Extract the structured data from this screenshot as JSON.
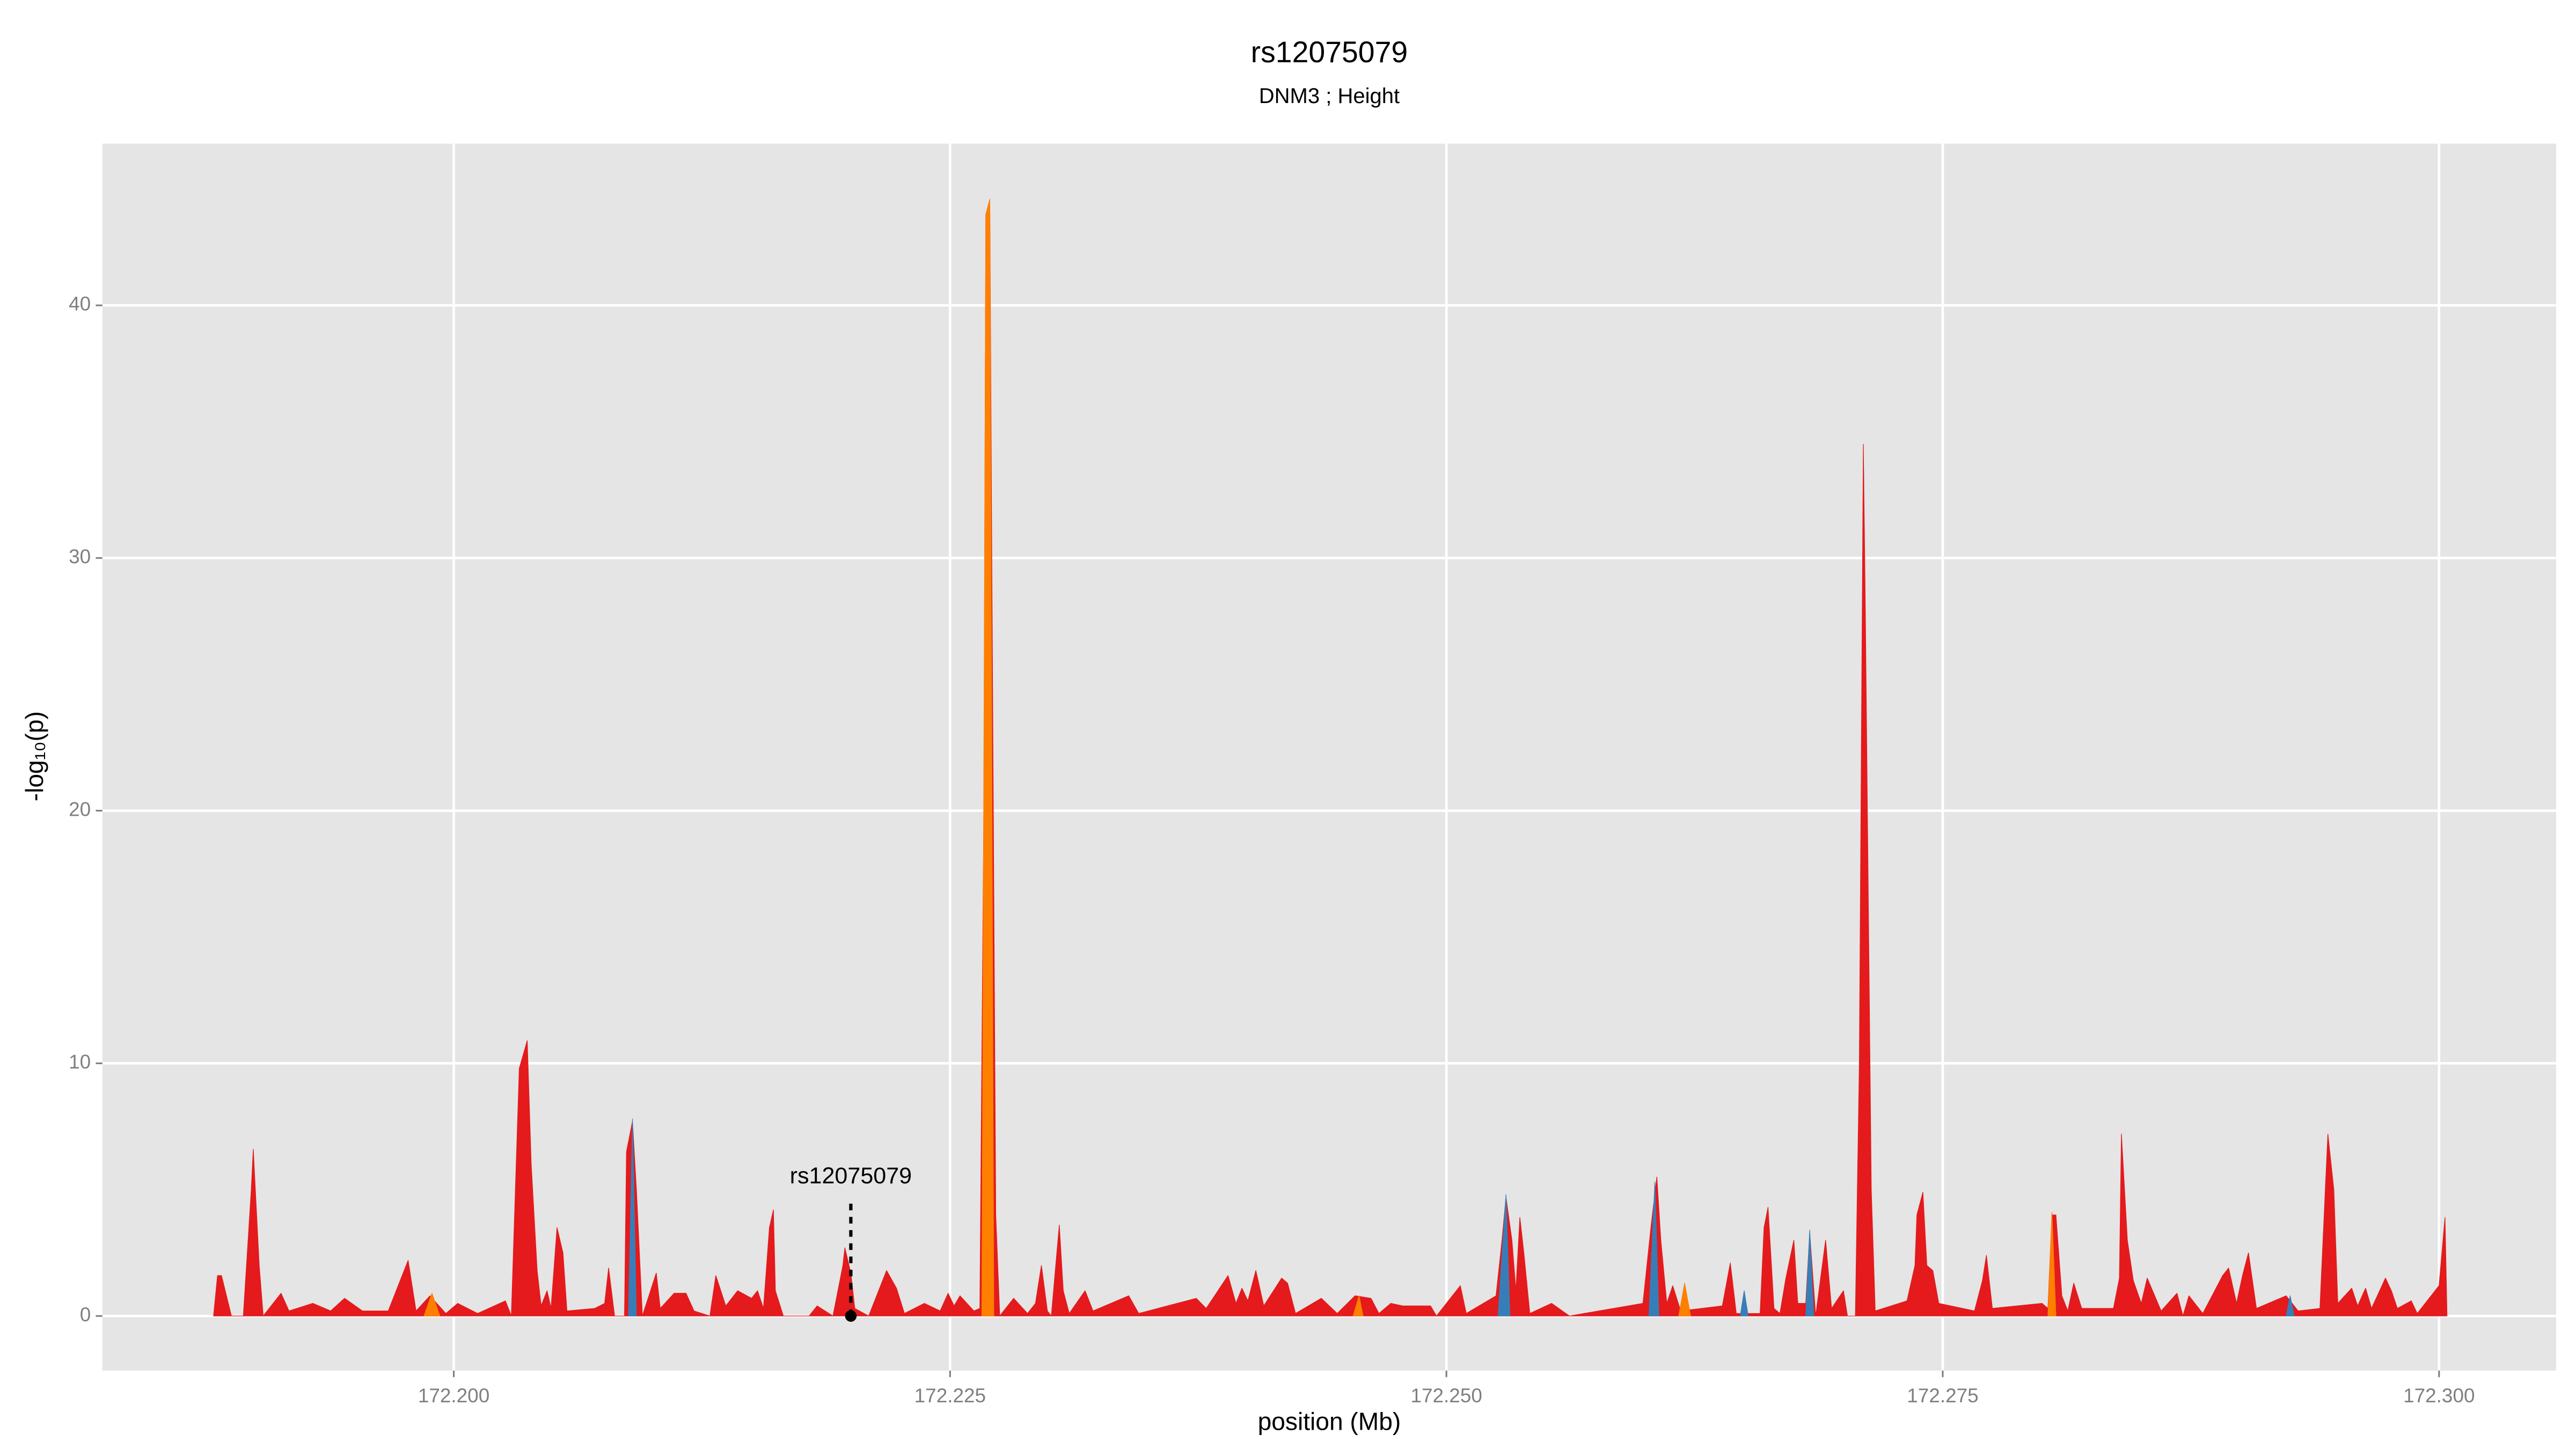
{
  "chart_data": {
    "type": "area",
    "title": "rs12075079",
    "subtitle": "DNM3 ; Height",
    "xlabel": "position (Mb)",
    "ylabel": "-log₁₀(p)",
    "xlim": [
      172.1823,
      172.3059
    ],
    "ylim": [
      -2.16,
      46.4
    ],
    "xticks": [
      {
        "value": 172.2,
        "label": "172.200"
      },
      {
        "value": 172.225,
        "label": "172.225"
      },
      {
        "value": 172.25,
        "label": "172.250"
      },
      {
        "value": 172.275,
        "label": "172.275"
      },
      {
        "value": 172.3,
        "label": "172.300"
      }
    ],
    "yticks": [
      0,
      10,
      20,
      30,
      40
    ],
    "grid": true,
    "series": [
      {
        "color": "#e41a1c",
        "x": [
          172.1879,
          172.1881,
          172.1883,
          172.1888,
          172.1894,
          172.1898,
          172.1899,
          172.1902,
          172.1904,
          172.1913,
          172.1917,
          172.1929,
          172.1938,
          172.1945,
          172.1954,
          172.1967,
          172.1977,
          172.1981,
          172.1988,
          172.1996,
          172.2002,
          172.2012,
          172.2026,
          172.2029,
          172.2033,
          172.2037,
          172.2039,
          172.2042,
          172.2044,
          172.2047,
          172.2049,
          172.2052,
          172.2055,
          172.2057,
          172.2071,
          172.2076,
          172.2078,
          172.2081,
          172.2086,
          172.2087,
          172.209,
          172.2092,
          172.2095,
          172.2102,
          172.2104,
          172.2111,
          172.2117,
          172.2121,
          172.2129,
          172.2132,
          172.2137,
          172.2143,
          172.215,
          172.2153,
          172.2156,
          172.2159,
          172.2161,
          172.2162,
          172.2166,
          172.2179,
          172.2183,
          172.2191,
          172.2196,
          172.2197,
          172.22,
          172.2202,
          172.2209,
          172.2218,
          172.2223,
          172.2227,
          172.2237,
          172.2245,
          172.2249,
          172.2252,
          172.2255,
          172.2262,
          172.2265,
          172.2267,
          172.2268,
          172.227,
          172.2271,
          172.2273,
          172.2275,
          172.2282,
          172.2289,
          172.2293,
          172.2296,
          172.2299,
          172.2301,
          172.2305,
          172.2307,
          172.231,
          172.2318,
          172.2322,
          172.234,
          172.2345,
          172.2374,
          172.2379,
          172.239,
          172.2394,
          172.2397,
          172.24,
          172.2404,
          172.2408,
          172.2417,
          172.242,
          172.2424,
          172.2437,
          172.2445,
          172.2454,
          172.2462,
          172.2466,
          172.2472,
          172.2478,
          172.2492,
          172.2495,
          172.2507,
          172.251,
          172.2525,
          172.2528,
          172.253,
          172.2533,
          172.2535,
          172.2537,
          172.2539,
          172.2542,
          172.2553,
          172.2562,
          172.2599,
          172.2603,
          172.2606,
          172.2608,
          172.2611,
          172.2614,
          172.2618,
          172.2639,
          172.2643,
          172.2646,
          172.2658,
          172.266,
          172.2662,
          172.2665,
          172.2668,
          172.2671,
          172.2675,
          172.2677,
          172.2681,
          172.2683,
          172.2686,
          172.2691,
          172.2694,
          172.27,
          172.2702,
          172.2706,
          172.2708,
          172.271,
          172.2711,
          172.2714,
          172.2716,
          172.2732,
          172.2736,
          172.2737,
          172.274,
          172.2742,
          172.2745,
          172.2748,
          172.2766,
          172.277,
          172.2772,
          172.2775,
          172.28,
          172.2803,
          172.2805,
          172.2807,
          172.281,
          172.2813,
          172.2816,
          172.282,
          172.2836,
          172.2839,
          172.284,
          172.2843,
          172.2846,
          172.285,
          172.2853,
          172.286,
          172.2868,
          172.2871,
          172.2874,
          172.2881,
          172.2891,
          172.2894,
          172.2898,
          172.2901,
          172.2904,
          172.2908,
          172.2923,
          172.2929,
          172.294,
          172.2943,
          172.2944,
          172.2947,
          172.2949,
          172.2956,
          172.2959,
          172.2963,
          172.2966,
          172.2973,
          172.2976,
          172.2979,
          172.2986,
          172.2989,
          172.3,
          172.3003,
          172.3004
        ],
        "values": [
          0,
          1.6,
          1.6,
          0,
          0,
          5,
          6.6,
          2,
          0,
          0.9,
          0.2,
          0.5,
          0.2,
          0.7,
          0.2,
          0.2,
          2.2,
          0.2,
          0.8,
          0.1,
          0.5,
          0.1,
          0.6,
          0,
          9.8,
          10.9,
          6,
          1.8,
          0.4,
          1,
          0.3,
          3.5,
          2.5,
          0.2,
          0.3,
          0.5,
          1.9,
          0,
          0,
          6.5,
          7.7,
          5,
          0,
          1.7,
          0.3,
          0.9,
          0.9,
          0.2,
          0,
          1.6,
          0.4,
          1,
          0.7,
          1,
          0.3,
          3.5,
          4.2,
          1,
          0,
          0,
          0.4,
          0,
          2,
          2.7,
          1.7,
          0.3,
          0,
          1.8,
          1.1,
          0.1,
          0.5,
          0.2,
          0.9,
          0.4,
          0.8,
          0.2,
          0.3,
          20,
          43.6,
          44,
          30,
          4,
          0,
          0.7,
          0.1,
          0.5,
          2,
          0.2,
          0,
          3.6,
          1,
          0.1,
          1,
          0.2,
          0.8,
          0.1,
          0.7,
          0.3,
          1.6,
          0.5,
          1.1,
          0.6,
          1.8,
          0.4,
          1.5,
          1.3,
          0.1,
          0.7,
          0.1,
          0.8,
          0.7,
          0.1,
          0.5,
          0.4,
          0.4,
          0,
          1.2,
          0.1,
          0.8,
          3,
          4.7,
          3,
          1,
          3.9,
          2.5,
          0.1,
          0.5,
          0,
          0.5,
          3.5,
          5.5,
          3,
          0.5,
          1.2,
          0.2,
          0.4,
          2.1,
          0.1,
          0.1,
          3.5,
          4.3,
          0.3,
          0.1,
          1.5,
          3,
          0.5,
          0.5,
          3.3,
          0,
          3,
          0.3,
          1,
          0,
          0,
          10,
          34.5,
          28,
          5,
          0.2,
          0.6,
          2,
          4,
          4.9,
          2,
          1.8,
          0.5,
          0.2,
          1.4,
          2.4,
          0.3,
          0.5,
          0.3,
          4,
          4,
          0.8,
          0.2,
          1.3,
          0.3,
          0.3,
          1.5,
          7.2,
          3,
          1.4,
          0.5,
          1.5,
          0.2,
          0.9,
          0,
          0.8,
          0.1,
          1.6,
          1.9,
          0.5,
          1.6,
          2.5,
          0.3,
          0.8,
          0.2,
          0.3,
          5.5,
          7.2,
          5,
          0.5,
          1.1,
          0.4,
          1.1,
          0.3,
          1.5,
          1,
          0.3,
          0.6,
          0.1,
          1.2,
          3.9,
          0
        ]
      },
      {
        "color": "#ff7f00",
        "x": [
          172.1985,
          172.1989,
          172.1993,
          172.2,
          172.2266,
          172.2268,
          172.227,
          172.2272,
          172.228,
          172.2453,
          172.2456,
          172.2458,
          172.246,
          172.2617,
          172.262,
          172.2623,
          172.263,
          172.2803,
          172.2805,
          172.2807
        ],
        "values": [
          0,
          0.9,
          0,
          null,
          0,
          43.6,
          44.2,
          0,
          null,
          0,
          0.8,
          0,
          null,
          0,
          1.3,
          0,
          null,
          0,
          4.1,
          0
        ]
      },
      {
        "color": "#377eb8",
        "x": [
          172.2088,
          172.209,
          172.2092,
          172.21,
          172.2526,
          172.253,
          172.2532,
          172.256,
          172.2602,
          172.2605,
          172.2607,
          172.264,
          172.2648,
          172.265,
          172.2652,
          172.267,
          172.2681,
          172.2683,
          172.2685,
          172.29,
          172.2923,
          172.2925,
          172.2927
        ],
        "values": [
          0,
          7.8,
          0,
          null,
          0,
          4.8,
          0,
          null,
          0,
          5.3,
          0,
          null,
          0,
          1,
          0,
          null,
          0,
          3.4,
          0,
          null,
          0,
          0.8,
          0
        ]
      }
    ],
    "annotation": {
      "label": "rs12075079",
      "x": 172.22,
      "y": 0
    }
  }
}
